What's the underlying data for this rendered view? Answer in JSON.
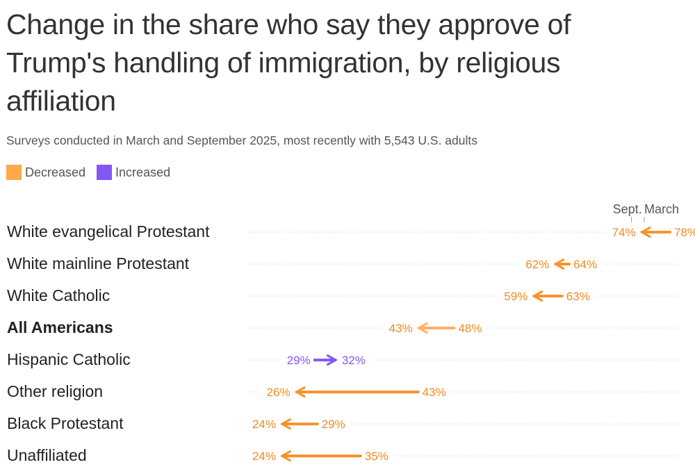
{
  "title": "Change in the share who say they approve of Trump's handling of immigration, by religious affiliation",
  "subtitle": "Surveys conducted in March and September 2025, most recently with 5,543 U.S. adults",
  "legend": [
    {
      "label": "Decreased",
      "color": "#FFA94D"
    },
    {
      "label": "Increased",
      "color": "#8457F5"
    }
  ],
  "colors": {
    "decrease_arrow": "#F7932F",
    "decrease_arrow_highlight": "#FFB066",
    "increase_arrow": "#8457F5",
    "decrease_text": "#F08A24",
    "increase_text": "#8457F5",
    "row_label": "#222222",
    "dots": "#BBBBBB"
  },
  "chart_data": {
    "type": "dumbbell",
    "unit": "%",
    "column_labels": {
      "start": "March",
      "end": "Sept."
    },
    "rows": [
      {
        "label": "White evangelical Protestant",
        "march": 78,
        "sept": 74,
        "bold": false
      },
      {
        "label": "White mainline Protestant",
        "march": 64,
        "sept": 62,
        "bold": false
      },
      {
        "label": "White Catholic",
        "march": 63,
        "sept": 59,
        "bold": false
      },
      {
        "label": "All Americans",
        "march": 48,
        "sept": 43,
        "bold": true
      },
      {
        "label": "Hispanic Catholic",
        "march": 29,
        "sept": 32,
        "bold": false
      },
      {
        "label": "Other religion",
        "march": 43,
        "sept": 26,
        "bold": false
      },
      {
        "label": "Black Protestant",
        "march": 29,
        "sept": 24,
        "bold": false
      },
      {
        "label": "Unaffiliated",
        "march": 35,
        "sept": 24,
        "bold": false
      }
    ]
  }
}
